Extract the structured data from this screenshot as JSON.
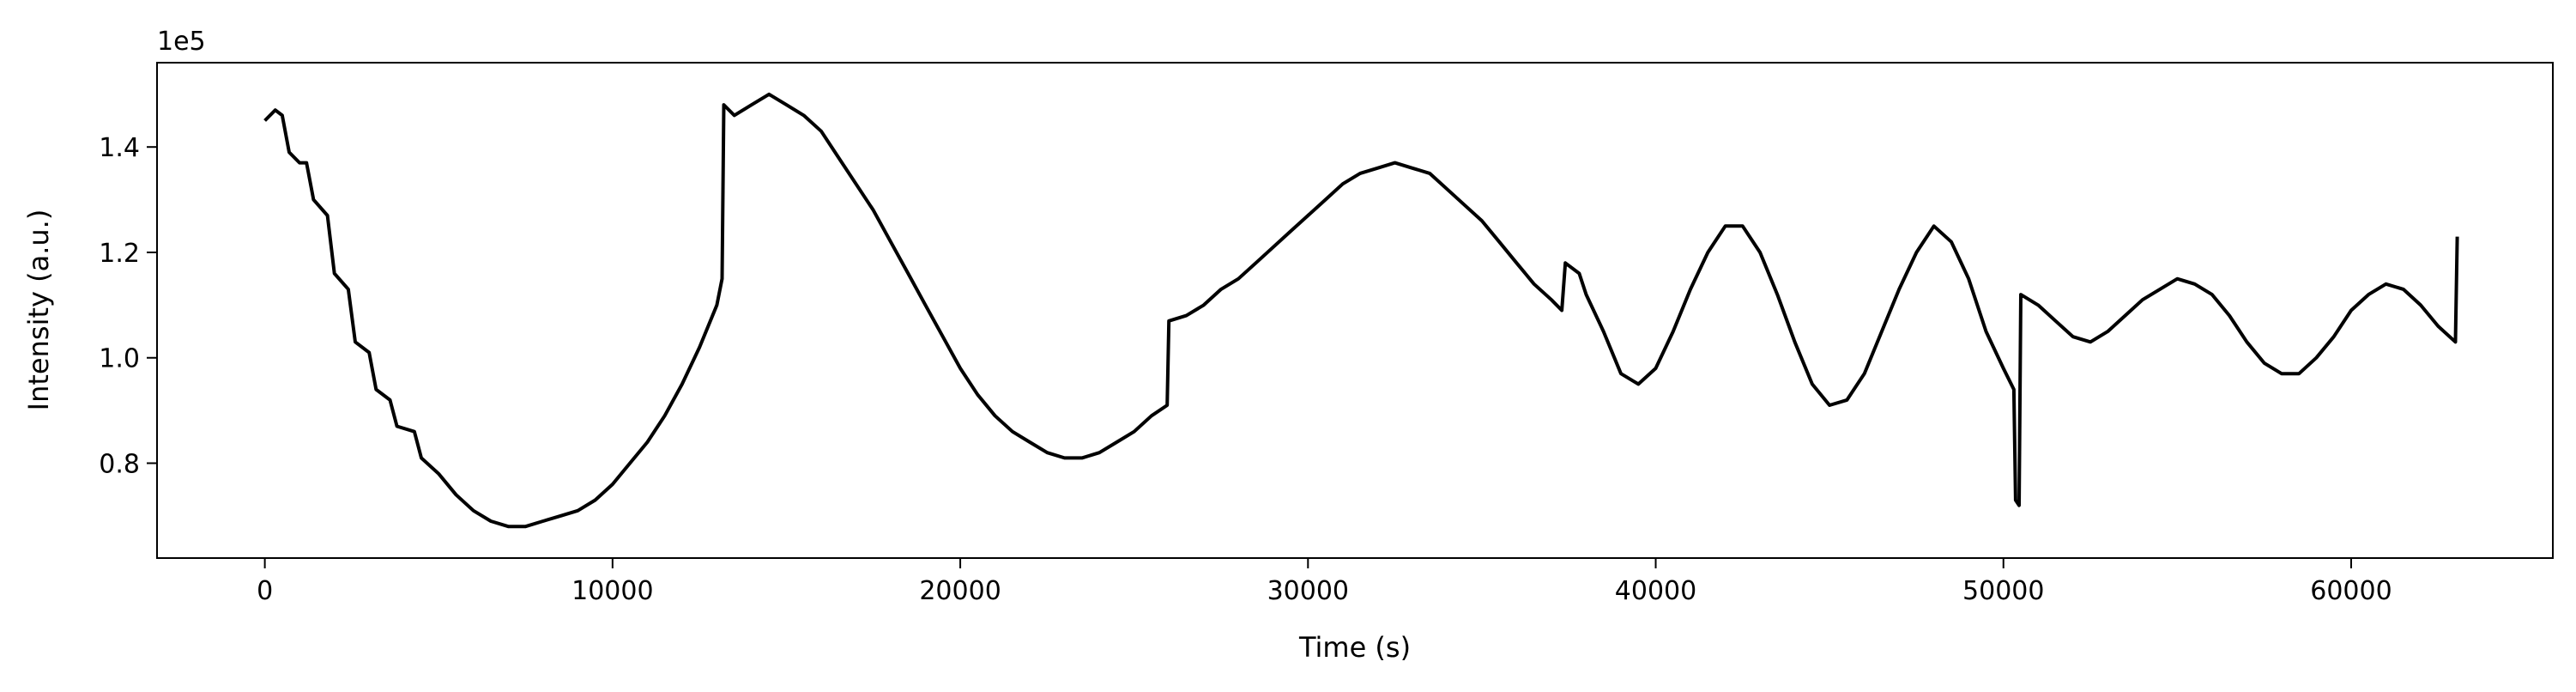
{
  "chart_data": {
    "type": "line",
    "title": "",
    "xlabel": "Time (s)",
    "ylabel": "Intensity (a.u.)",
    "y_offset_label": "1e5",
    "xlim": [
      -3100,
      65800
    ],
    "ylim": [
      0.62,
      1.56
    ],
    "y_scale_factor": 100000,
    "x_ticks": [
      0,
      10000,
      20000,
      30000,
      40000,
      50000,
      60000
    ],
    "x_tick_labels": [
      "0",
      "10000",
      "20000",
      "30000",
      "40000",
      "50000",
      "60000"
    ],
    "y_ticks": [
      0.8,
      1.0,
      1.2,
      1.4
    ],
    "y_tick_labels": [
      "0.8",
      "1.0",
      "1.2",
      "1.4"
    ],
    "grid": false,
    "legend": "none",
    "line_color": "#000000",
    "series": [
      {
        "values_units": "x1e5",
        "points": [
          [
            0,
            1.45
          ],
          [
            300,
            1.47
          ],
          [
            500,
            1.46
          ],
          [
            700,
            1.39
          ],
          [
            1000,
            1.37
          ],
          [
            1200,
            1.37
          ],
          [
            1400,
            1.3
          ],
          [
            1800,
            1.27
          ],
          [
            2000,
            1.16
          ],
          [
            2400,
            1.13
          ],
          [
            2600,
            1.03
          ],
          [
            3000,
            1.01
          ],
          [
            3200,
            0.94
          ],
          [
            3600,
            0.92
          ],
          [
            3800,
            0.87
          ],
          [
            4300,
            0.86
          ],
          [
            4500,
            0.81
          ],
          [
            5000,
            0.78
          ],
          [
            5500,
            0.74
          ],
          [
            6000,
            0.71
          ],
          [
            6500,
            0.69
          ],
          [
            7000,
            0.68
          ],
          [
            7500,
            0.68
          ],
          [
            8000,
            0.69
          ],
          [
            8500,
            0.7
          ],
          [
            9000,
            0.71
          ],
          [
            9500,
            0.73
          ],
          [
            10000,
            0.76
          ],
          [
            10500,
            0.8
          ],
          [
            11000,
            0.84
          ],
          [
            11500,
            0.89
          ],
          [
            12000,
            0.95
          ],
          [
            12500,
            1.02
          ],
          [
            13000,
            1.1
          ],
          [
            13150,
            1.15
          ],
          [
            13200,
            1.48
          ],
          [
            13500,
            1.46
          ],
          [
            14000,
            1.48
          ],
          [
            14500,
            1.5
          ],
          [
            15000,
            1.48
          ],
          [
            15500,
            1.46
          ],
          [
            16000,
            1.43
          ],
          [
            16500,
            1.38
          ],
          [
            17000,
            1.33
          ],
          [
            17500,
            1.28
          ],
          [
            18000,
            1.22
          ],
          [
            18500,
            1.16
          ],
          [
            19000,
            1.1
          ],
          [
            19500,
            1.04
          ],
          [
            20000,
            0.98
          ],
          [
            20500,
            0.93
          ],
          [
            21000,
            0.89
          ],
          [
            21500,
            0.86
          ],
          [
            22000,
            0.84
          ],
          [
            22500,
            0.82
          ],
          [
            23000,
            0.81
          ],
          [
            23500,
            0.81
          ],
          [
            24000,
            0.82
          ],
          [
            24500,
            0.84
          ],
          [
            25000,
            0.86
          ],
          [
            25500,
            0.89
          ],
          [
            25950,
            0.91
          ],
          [
            26000,
            1.07
          ],
          [
            26500,
            1.08
          ],
          [
            27000,
            1.1
          ],
          [
            27500,
            1.13
          ],
          [
            28000,
            1.15
          ],
          [
            28500,
            1.18
          ],
          [
            29000,
            1.21
          ],
          [
            29500,
            1.24
          ],
          [
            30000,
            1.27
          ],
          [
            30500,
            1.3
          ],
          [
            31000,
            1.33
          ],
          [
            31500,
            1.35
          ],
          [
            32000,
            1.36
          ],
          [
            32500,
            1.37
          ],
          [
            33000,
            1.36
          ],
          [
            33500,
            1.35
          ],
          [
            34000,
            1.32
          ],
          [
            34500,
            1.29
          ],
          [
            35000,
            1.26
          ],
          [
            35500,
            1.22
          ],
          [
            36000,
            1.18
          ],
          [
            36500,
            1.14
          ],
          [
            37000,
            1.11
          ],
          [
            37300,
            1.09
          ],
          [
            37400,
            1.18
          ],
          [
            37800,
            1.16
          ],
          [
            38000,
            1.12
          ],
          [
            38500,
            1.05
          ],
          [
            39000,
            0.97
          ],
          [
            39500,
            0.95
          ],
          [
            40000,
            0.98
          ],
          [
            40500,
            1.05
          ],
          [
            41000,
            1.13
          ],
          [
            41500,
            1.2
          ],
          [
            42000,
            1.25
          ],
          [
            42500,
            1.25
          ],
          [
            43000,
            1.2
          ],
          [
            43500,
            1.12
          ],
          [
            44000,
            1.03
          ],
          [
            44500,
            0.95
          ],
          [
            45000,
            0.91
          ],
          [
            45500,
            0.92
          ],
          [
            46000,
            0.97
          ],
          [
            46500,
            1.05
          ],
          [
            47000,
            1.13
          ],
          [
            47500,
            1.2
          ],
          [
            48000,
            1.25
          ],
          [
            48500,
            1.22
          ],
          [
            49000,
            1.15
          ],
          [
            49500,
            1.05
          ],
          [
            50000,
            0.98
          ],
          [
            50300,
            0.94
          ],
          [
            50350,
            0.73
          ],
          [
            50450,
            0.72
          ],
          [
            50500,
            1.12
          ],
          [
            51000,
            1.1
          ],
          [
            51500,
            1.07
          ],
          [
            52000,
            1.04
          ],
          [
            52500,
            1.03
          ],
          [
            53000,
            1.05
          ],
          [
            53500,
            1.08
          ],
          [
            54000,
            1.11
          ],
          [
            54500,
            1.13
          ],
          [
            55000,
            1.15
          ],
          [
            55500,
            1.14
          ],
          [
            56000,
            1.12
          ],
          [
            56500,
            1.08
          ],
          [
            57000,
            1.03
          ],
          [
            57500,
            0.99
          ],
          [
            58000,
            0.97
          ],
          [
            58500,
            0.97
          ],
          [
            59000,
            1.0
          ],
          [
            59500,
            1.04
          ],
          [
            60000,
            1.09
          ],
          [
            60500,
            1.12
          ],
          [
            61000,
            1.14
          ],
          [
            61500,
            1.13
          ],
          [
            62000,
            1.1
          ],
          [
            62500,
            1.06
          ],
          [
            63000,
            1.03
          ],
          [
            63050,
            1.23
          ]
        ]
      }
    ]
  }
}
